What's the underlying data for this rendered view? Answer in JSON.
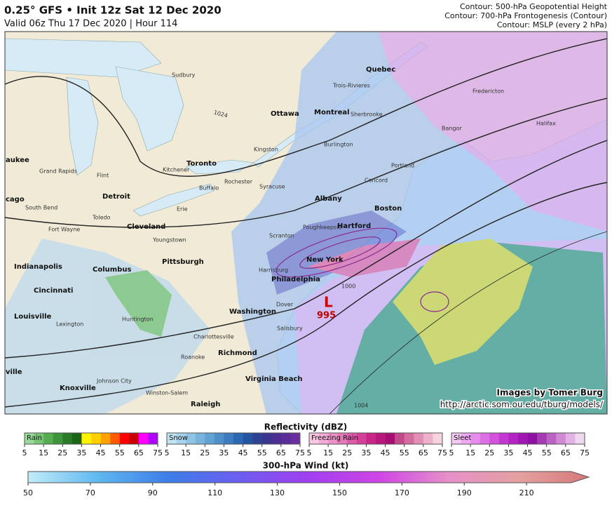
{
  "header": {
    "title": "0.25° GFS • Init 12z Sat 12 Dec 2020",
    "subtitle": "Valid 06z Thu 17 Dec 2020 | Hour 114",
    "contours": [
      "Contour: 500-hPa Geopotential Height",
      "Contour: 700-hPa Frontogenesis (Contour)",
      "Contour: MSLP (every 2 hPa)"
    ]
  },
  "map": {
    "cities": [
      "Sudbury",
      "Ottawa",
      "Montreal",
      "Quebec",
      "Toronto",
      "Detroit",
      "Cleveland",
      "Pittsburgh",
      "Columbus",
      "Indianapolis",
      "Cincinnati",
      "Louisville",
      "Washington",
      "Philadelphia",
      "New York",
      "Boston",
      "Hartford",
      "Albany",
      "Richmond",
      "Virginia Beach",
      "Raleigh",
      "Rochester",
      "Buffalo",
      "Syracuse",
      "Grand Rapids",
      "Knoxville",
      "Portland",
      "Halifax",
      "Burlington",
      "Scranton",
      "Harrisburg",
      "Lexington",
      "Huntington",
      "Roanoke",
      "Charlottesville",
      "Flint",
      "Toledo",
      "Fort Wayne",
      "South Bend",
      "Sherbrooke",
      "Kitchener",
      "Youngstown",
      "Poughkeepsie",
      "Concord",
      "Bangor",
      "Fredericton",
      "aukee",
      "cago",
      "ville",
      "Kingston",
      "Erie",
      "Johnson City",
      "Winston-Salem",
      "Dover",
      "Salisbury",
      "Trois-Rivieres"
    ],
    "low": "L",
    "low_value": 995,
    "isobars": [
      1000,
      1024,
      1004
    ],
    "credit": [
      "Images by Tomer Burg",
      "http://arctic.som.ou.edu/tburg/models/"
    ]
  },
  "legend": {
    "reflectivity": {
      "title": "Reflectivity (dBZ)",
      "bars": [
        {
          "name": "Rain",
          "ticks": [
            5,
            15,
            25,
            35,
            45,
            55,
            65,
            75
          ],
          "colors": [
            "#9bd99a",
            "#77c575",
            "#55ad52",
            "#3d943a",
            "#2a7a28",
            "#1c6419",
            "#fff200",
            "#ffcf00",
            "#ffa200",
            "#ff5a00",
            "#ff0000",
            "#c80000",
            "#ff00ff",
            "#b000ff"
          ]
        },
        {
          "name": "Snow",
          "ticks": [
            5,
            15,
            25,
            35,
            45,
            55,
            65,
            75
          ],
          "colors": [
            "#bfe3f2",
            "#a7d4ec",
            "#8fc4e4",
            "#78b3dc",
            "#62a1d3",
            "#4e8ec9",
            "#3b7bbe",
            "#2b68b2",
            "#2355a3",
            "#2c4394",
            "#3a3690",
            "#4b2f93",
            "#5a2d98",
            "#6a2e9e"
          ]
        },
        {
          "name": "Freezing Rain",
          "ticks": [
            5,
            15,
            25,
            35,
            45,
            55,
            65,
            75
          ],
          "colors": [
            "#f9c7e4",
            "#f4acd6",
            "#ee91c8",
            "#e776b9",
            "#de5aa9",
            "#d43f98",
            "#c92788",
            "#b8177b",
            "#a60f71",
            "#c24a8a",
            "#d46ca0",
            "#e28fb6",
            "#eeb1cb",
            "#f7d3e1"
          ]
        },
        {
          "name": "Sleet",
          "ticks": [
            5,
            15,
            25,
            35,
            45,
            55,
            65,
            75
          ],
          "colors": [
            "#f5c8f5",
            "#eeaaf0",
            "#e68ceb",
            "#dd6fe4",
            "#d252dc",
            "#c438d1",
            "#b424c4",
            "#a017b3",
            "#8e11a4",
            "#a53bb3",
            "#bb62c3",
            "#cf8ad3",
            "#e1b2e3",
            "#f1d8f1"
          ]
        }
      ]
    },
    "wind": {
      "title": "300-hPa Wind (kt)",
      "ticks": [
        50,
        70,
        90,
        110,
        130,
        150,
        170,
        190,
        210
      ],
      "range": [
        50,
        230
      ],
      "colors": [
        "#c2ecfa",
        "#5fb8f0",
        "#3d7ee8",
        "#6b5ef0",
        "#a13ef0",
        "#cf44e6",
        "#e690c9",
        "#e4a0a0",
        "#d87878"
      ]
    }
  }
}
